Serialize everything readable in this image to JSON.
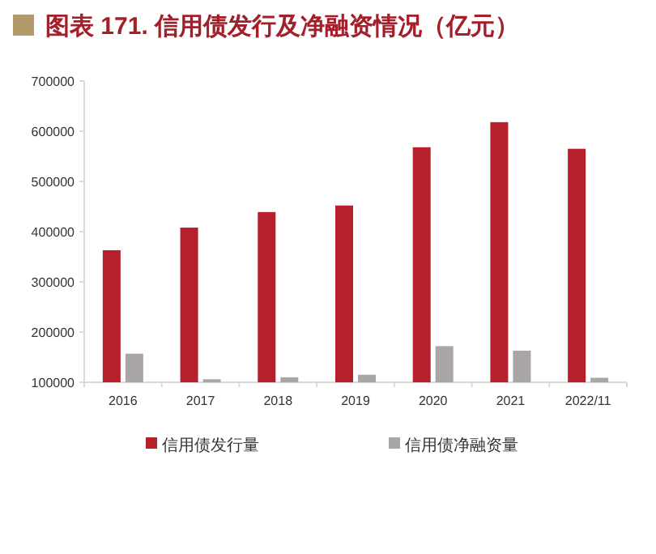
{
  "chart_data": {
    "type": "bar",
    "title": "图表 171. 信用债发行及净融资情况（亿元）",
    "categories": [
      "2016",
      "2017",
      "2018",
      "2019",
      "2020",
      "2021",
      "2022/11"
    ],
    "series": [
      {
        "name": "信用债发行量",
        "color": "#b5202a",
        "values": [
          363000,
          408000,
          439000,
          452000,
          568000,
          618000,
          565000
        ]
      },
      {
        "name": "信用债净融资量",
        "color": "#aaa6a5",
        "values": [
          157000,
          106000,
          110000,
          115000,
          172000,
          163000,
          109000
        ]
      }
    ],
    "ylim": [
      100000,
      700000
    ],
    "yticks": [
      100000,
      200000,
      300000,
      400000,
      500000,
      600000,
      700000
    ],
    "grid": false,
    "legend": "bottom"
  }
}
